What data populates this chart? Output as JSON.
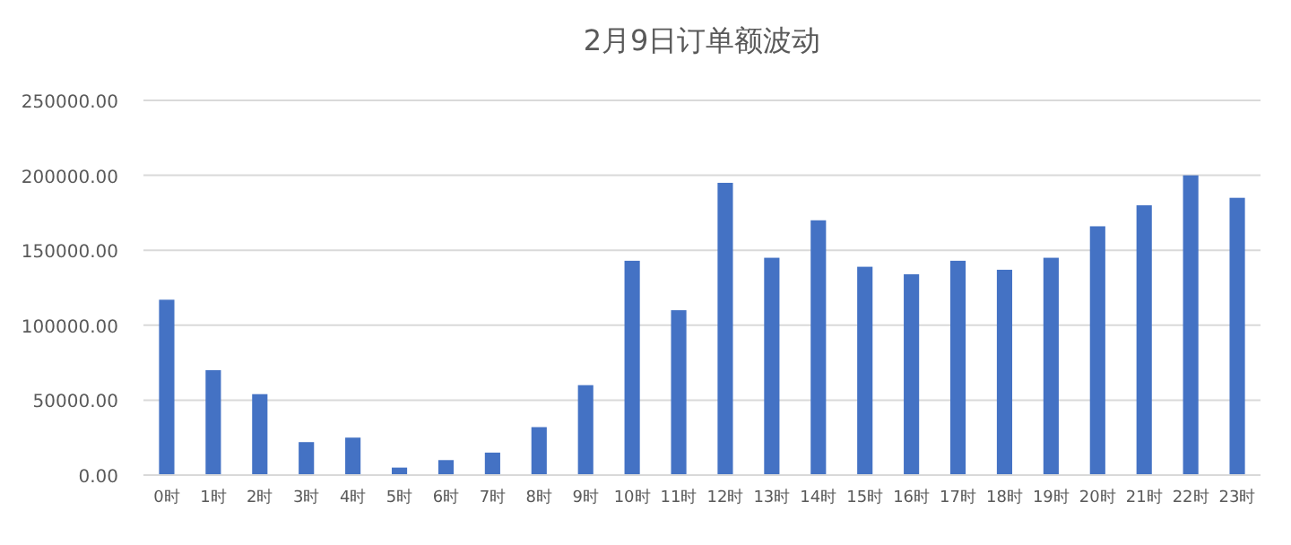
{
  "chart_data": {
    "type": "bar",
    "title": "2月9日订单额波动",
    "categories": [
      "0时",
      "1时",
      "2时",
      "3时",
      "4时",
      "5时",
      "6时",
      "7时",
      "8时",
      "9时",
      "10时",
      "11时",
      "12时",
      "13时",
      "14时",
      "15时",
      "16时",
      "17时",
      "18时",
      "19时",
      "20时",
      "21时",
      "22时",
      "23时"
    ],
    "values": [
      117000,
      70000,
      54000,
      22000,
      25000,
      5000,
      10000,
      15000,
      32000,
      60000,
      143000,
      110000,
      195000,
      145000,
      170000,
      139000,
      134000,
      143000,
      137000,
      145000,
      166000,
      180000,
      200000,
      185000
    ],
    "color": "#4472c4",
    "ylim": [
      0,
      250000
    ],
    "yticks": [
      {
        "value": 0,
        "label": "0.00"
      },
      {
        "value": 50000,
        "label": "50000.00"
      },
      {
        "value": 100000,
        "label": "100000.00"
      },
      {
        "value": 150000,
        "label": "150000.00"
      },
      {
        "value": 200000,
        "label": "200000.00"
      },
      {
        "value": 250000,
        "label": "250000.00"
      }
    ],
    "grid": "y"
  }
}
